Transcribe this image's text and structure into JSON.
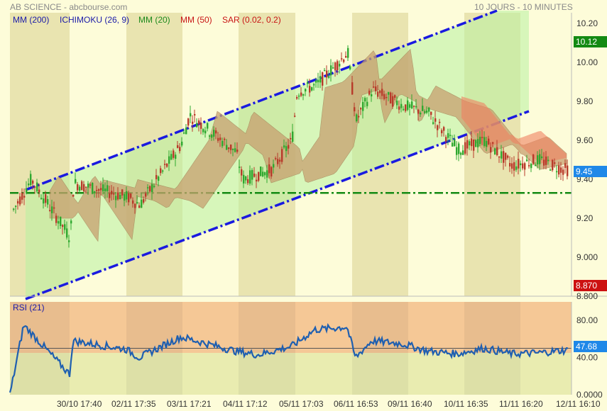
{
  "header": {
    "title": "AB SCIENCE - abcbourse.com",
    "period": "10 JOURS - 10 MINUTES"
  },
  "legend": [
    {
      "label": "MM (200)",
      "color": "#1a1aa8"
    },
    {
      "label": "ICHIMOKU (26, 9)",
      "color": "#1a1aa8"
    },
    {
      "label": "MM (20)",
      "color": "#1c8a1c"
    },
    {
      "label": "MM (50)",
      "color": "#c81414"
    },
    {
      "label": "SAR (0.02, 0.2)",
      "color": "#c81414"
    }
  ],
  "rsi_label": "RSI (21)",
  "price_axis": {
    "ticks": [
      "10.20",
      "10.00",
      "9.80",
      "9.60",
      "9.40",
      "9.20",
      "9.000",
      "8.800"
    ],
    "high_tag": "10.12",
    "last_tag": "9.45",
    "low_tag": "8.870"
  },
  "rsi_axis": {
    "ticks": [
      "80.00",
      "40.00",
      "0.0000"
    ],
    "last_tag": "47.68"
  },
  "x_labels": [
    "30/10 17:40",
    "02/11 17:35",
    "03/11 17:21",
    "04/11 17:12",
    "05/11 17:03",
    "06/11 16:53",
    "09/11 16:40",
    "10/11 16:35",
    "11/11 16:20",
    "12/11 16:10"
  ],
  "colors": {
    "bull": "#2fa82f",
    "bear": "#b83a2a",
    "channel": "#1a1ae0",
    "support": "#138a13",
    "rsi": "#1f5fb0",
    "high_tag": "#138a13",
    "last_tag": "#1f88e8",
    "low_tag": "#cc1111"
  },
  "chart_data": {
    "type": "line",
    "title": "AB SCIENCE",
    "ylim": [
      8.8,
      10.25
    ],
    "price_anchors": [
      {
        "x": "30/10 09:00",
        "y": 9.22
      },
      {
        "x": "30/10 12:00",
        "y": 9.4
      },
      {
        "x": "30/10 17:40",
        "y": 9.1
      },
      {
        "x": "02/11 09:30",
        "y": 9.38
      },
      {
        "x": "02/11 17:35",
        "y": 9.31
      },
      {
        "x": "03/11 09:30",
        "y": 9.3
      },
      {
        "x": "03/11 11:00",
        "y": 9.27
      },
      {
        "x": "03/11 17:21",
        "y": 9.58
      },
      {
        "x": "04/11 10:00",
        "y": 9.73
      },
      {
        "x": "04/11 17:12",
        "y": 9.54
      },
      {
        "x": "05/11 09:30",
        "y": 9.4
      },
      {
        "x": "05/11 14:00",
        "y": 9.45
      },
      {
        "x": "05/11 17:03",
        "y": 9.6
      },
      {
        "x": "06/11 09:10",
        "y": 9.85
      },
      {
        "x": "06/11 12:00",
        "y": 9.88
      },
      {
        "x": "06/11 16:53",
        "y": 10.05
      },
      {
        "x": "09/11 09:30",
        "y": 9.7
      },
      {
        "x": "09/11 12:00",
        "y": 9.86
      },
      {
        "x": "09/11 16:40",
        "y": 9.78
      },
      {
        "x": "10/11 12:00",
        "y": 9.74
      },
      {
        "x": "10/11 16:35",
        "y": 9.55
      },
      {
        "x": "11/11 12:00",
        "y": 9.6
      },
      {
        "x": "11/11 16:20",
        "y": 9.47
      },
      {
        "x": "12/11 12:00",
        "y": 9.5
      },
      {
        "x": "12/11 16:10",
        "y": 9.45
      }
    ],
    "rsi_anchors": [
      {
        "x": "30/10 09:00",
        "y": 0
      },
      {
        "x": "30/10 11:00",
        "y": 75
      },
      {
        "x": "30/10 17:40",
        "y": 22
      },
      {
        "x": "02/11 09:30",
        "y": 58
      },
      {
        "x": "02/11 17:35",
        "y": 49
      },
      {
        "x": "03/11 11:00",
        "y": 40
      },
      {
        "x": "03/11 17:21",
        "y": 62
      },
      {
        "x": "04/11 10:00",
        "y": 60
      },
      {
        "x": "04/11 17:12",
        "y": 47
      },
      {
        "x": "05/11 12:00",
        "y": 43
      },
      {
        "x": "05/11 17:03",
        "y": 52
      },
      {
        "x": "06/11 12:00",
        "y": 70
      },
      {
        "x": "06/11 16:53",
        "y": 73
      },
      {
        "x": "09/11 09:30",
        "y": 40
      },
      {
        "x": "09/11 12:00",
        "y": 58
      },
      {
        "x": "09/11 16:40",
        "y": 55
      },
      {
        "x": "10/11 12:00",
        "y": 47
      },
      {
        "x": "10/11 16:35",
        "y": 44
      },
      {
        "x": "11/11 12:00",
        "y": 50
      },
      {
        "x": "11/11 16:20",
        "y": 44
      },
      {
        "x": "12/11 12:00",
        "y": 45
      },
      {
        "x": "12/11 16:10",
        "y": 47.68
      }
    ],
    "support_level": 9.33,
    "rsi_ylim": [
      0,
      100
    ]
  }
}
